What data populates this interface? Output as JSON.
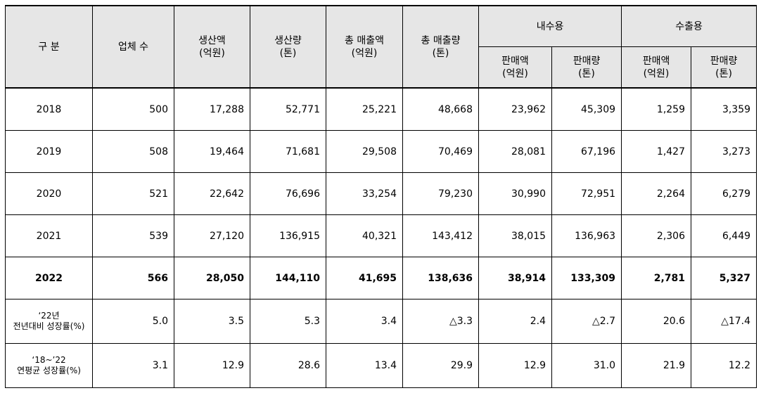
{
  "headers": {
    "category": "구  분",
    "companies": "업체 수",
    "production_value": [
      "생산액",
      "(억원)"
    ],
    "production_volume": [
      "생산량",
      "(톤)"
    ],
    "total_sales_value": [
      "총 매출액",
      "(억원)"
    ],
    "total_sales_volume": [
      "총 매출량",
      "(톤)"
    ],
    "domestic": "내수용",
    "export": "수출용",
    "sales_value": [
      "판매액",
      "(억원)"
    ],
    "sales_volume": [
      "판매량",
      "(톤)"
    ]
  },
  "rows": [
    {
      "label": "2018",
      "values": [
        "500",
        "17,288",
        "52,771",
        "25,221",
        "48,668",
        "23,962",
        "45,309",
        "1,259",
        "3,359"
      ]
    },
    {
      "label": "2019",
      "values": [
        "508",
        "19,464",
        "71,681",
        "29,508",
        "70,469",
        "28,081",
        "67,196",
        "1,427",
        "3,273"
      ]
    },
    {
      "label": "2020",
      "values": [
        "521",
        "22,642",
        "76,696",
        "33,254",
        "79,230",
        "30,990",
        "72,951",
        "2,264",
        "6,279"
      ]
    },
    {
      "label": "2021",
      "values": [
        "539",
        "27,120",
        "136,915",
        "40,321",
        "143,412",
        "38,015",
        "136,963",
        "2,306",
        "6,449"
      ]
    },
    {
      "label": "2022",
      "values": [
        "566",
        "28,050",
        "144,110",
        "41,695",
        "138,636",
        "38,914",
        "133,309",
        "2,781",
        "5,327"
      ]
    }
  ],
  "growth_rows": [
    {
      "label": [
        "‘22년",
        "전년대비 성장률(%)"
      ],
      "values": [
        "5.0",
        "3.5",
        "5.3",
        "3.4",
        "△3.3",
        "2.4",
        "△2.7",
        "20.6",
        "△17.4"
      ]
    },
    {
      "label": [
        "‘18~’22",
        "연평균 성장률(%)"
      ],
      "values": [
        "3.1",
        "12.9",
        "28.6",
        "13.4",
        "29.9",
        "12.9",
        "31.0",
        "21.9",
        "12.2"
      ]
    }
  ]
}
